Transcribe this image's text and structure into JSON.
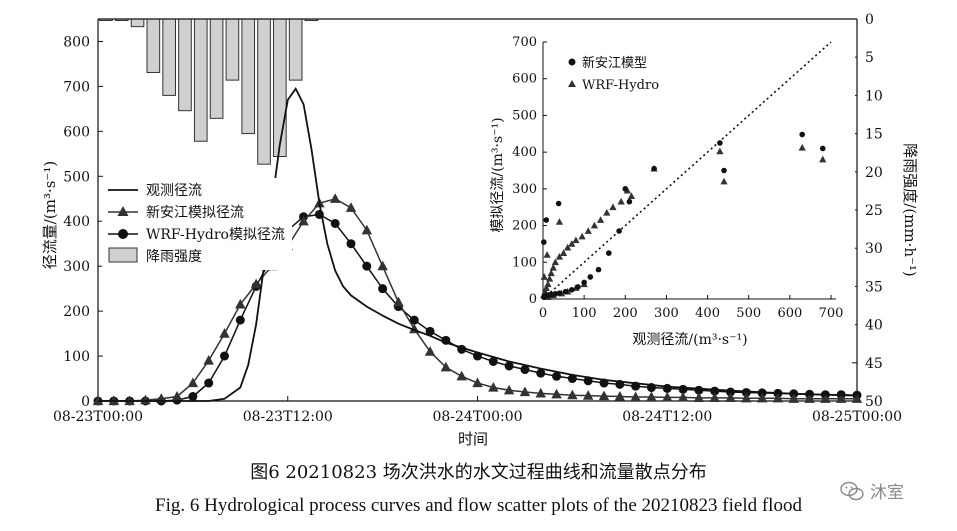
{
  "caption": {
    "cn": "图6   20210823 场次洪水的水文过程曲线和流量散点分布",
    "en": "Fig. 6   Hydrological process curves and flow scatter plots of the 20210823 field flood"
  },
  "watermark": {
    "text": "沐室",
    "icon": "wechat-icon"
  },
  "colors": {
    "ink": "#111111",
    "bar_fill": "#d0d0d0",
    "bar_stroke": "#333333"
  },
  "chart_data": [
    {
      "type": "line",
      "title": "",
      "xlabel": "时间",
      "ylabel": "径流量/(m³·s⁻¹)",
      "y2label": "降雨强度/(mm·h⁻¹)",
      "x_unit": "hours since 08-23T00:00",
      "xlim": [
        0,
        48
      ],
      "ylim": [
        0,
        850
      ],
      "y2lim": [
        50,
        0
      ],
      "xticks": [
        0,
        12,
        24,
        36,
        48
      ],
      "xtick_labels": [
        "08-23T00:00",
        "08-23T12:00",
        "08-24T00:00",
        "08-24T12:00",
        "08-25T00:00"
      ],
      "yticks": [
        0,
        100,
        200,
        300,
        400,
        500,
        600,
        700,
        800
      ],
      "y2ticks": [
        0,
        5,
        10,
        15,
        20,
        25,
        30,
        35,
        40,
        45,
        50
      ],
      "legend": {
        "position": "left-middle",
        "entries": [
          "观测径流",
          "新安江模拟径流",
          "WRF-Hydro模拟径流",
          "降雨强度"
        ]
      },
      "series": [
        {
          "name": "观测径流",
          "marker": "none",
          "x": [
            0,
            7,
            8,
            9,
            9.5,
            10,
            10.5,
            11,
            11.5,
            12,
            12.5,
            13,
            13.5,
            14,
            14.5,
            15,
            15.5,
            16,
            17,
            18,
            19,
            20,
            21,
            22,
            24,
            26,
            28,
            30,
            32,
            36,
            40,
            44,
            48
          ],
          "y": [
            0,
            0,
            5,
            30,
            80,
            170,
            300,
            440,
            570,
            670,
            695,
            660,
            560,
            440,
            350,
            290,
            255,
            235,
            210,
            190,
            172,
            158,
            145,
            130,
            108,
            88,
            72,
            58,
            47,
            32,
            23,
            16,
            12
          ]
        },
        {
          "name": "新安江模拟径流",
          "marker": "triangle",
          "x": [
            0,
            1,
            2,
            3,
            4,
            5,
            6,
            7,
            8,
            9,
            10,
            11,
            12,
            13,
            14,
            15,
            16,
            17,
            18,
            19,
            20,
            21,
            22,
            23,
            24,
            25,
            26,
            27,
            28,
            29,
            30,
            31,
            32,
            33,
            34,
            35,
            36,
            37,
            38,
            39,
            40,
            41,
            42,
            43,
            44,
            45,
            46,
            47,
            48
          ],
          "y": [
            0,
            0,
            0,
            2,
            5,
            10,
            40,
            90,
            150,
            215,
            260,
            300,
            345,
            400,
            440,
            450,
            430,
            380,
            300,
            220,
            160,
            110,
            75,
            55,
            40,
            30,
            24,
            20,
            17,
            15,
            13,
            12,
            11,
            10,
            9,
            9,
            8,
            8,
            7,
            7,
            7,
            6,
            6,
            6,
            5,
            5,
            5,
            5,
            5
          ]
        },
        {
          "name": "WRF-Hydro模拟径流",
          "marker": "circle",
          "x": [
            0,
            1,
            2,
            3,
            4,
            5,
            6,
            7,
            8,
            9,
            10,
            11,
            12,
            13,
            14,
            15,
            16,
            17,
            18,
            19,
            20,
            21,
            22,
            23,
            24,
            25,
            26,
            27,
            28,
            29,
            30,
            31,
            32,
            33,
            34,
            35,
            36,
            37,
            38,
            39,
            40,
            41,
            42,
            43,
            44,
            45,
            46,
            47,
            48
          ],
          "y": [
            0,
            0,
            0,
            0,
            0,
            2,
            10,
            40,
            100,
            180,
            255,
            320,
            380,
            410,
            415,
            395,
            350,
            300,
            250,
            210,
            180,
            155,
            135,
            115,
            100,
            88,
            78,
            70,
            62,
            55,
            50,
            45,
            40,
            37,
            33,
            30,
            28,
            26,
            24,
            22,
            20,
            19,
            18,
            17,
            16,
            15,
            14,
            14,
            13
          ]
        },
        {
          "name": "降雨强度",
          "type": "bar",
          "axis": "right",
          "x": [
            0.5,
            1.5,
            2.5,
            3.5,
            4.5,
            5.5,
            6.5,
            7.5,
            8.5,
            9.5,
            10.5,
            11.5,
            12.5,
            13.5
          ],
          "values": [
            0.2,
            0.2,
            1,
            7,
            10,
            12,
            16,
            13,
            8,
            15,
            19,
            18,
            8,
            0.2
          ]
        }
      ]
    },
    {
      "type": "scatter",
      "title": "",
      "xlabel": "观测径流/(m³·s⁻¹)",
      "ylabel": "模拟径流/(m³·s⁻¹)",
      "xlim": [
        0,
        700
      ],
      "ylim": [
        0,
        700
      ],
      "ticks": [
        0,
        100,
        200,
        300,
        400,
        500,
        600,
        700
      ],
      "reference_line": "y = x (dotted)",
      "legend": {
        "position": "top-left",
        "entries": [
          "新安江模型",
          "WRF-Hydro"
        ]
      },
      "series": [
        {
          "name": "新安江模型",
          "marker": "circle",
          "points": [
            [
              2,
              155
            ],
            [
              8,
              215
            ],
            [
              38,
              260
            ],
            [
              2,
              5
            ],
            [
              5,
              8
            ],
            [
              10,
              10
            ],
            [
              15,
              11
            ],
            [
              20,
              12
            ],
            [
              30,
              14
            ],
            [
              40,
              16
            ],
            [
              55,
              20
            ],
            [
              70,
              25
            ],
            [
              85,
              33
            ],
            [
              100,
              45
            ],
            [
              115,
              60
            ],
            [
              135,
              80
            ],
            [
              160,
              125
            ],
            [
              185,
              185
            ],
            [
              200,
              300
            ],
            [
              210,
              265
            ],
            [
              270,
              355
            ],
            [
              430,
              425
            ],
            [
              440,
              350
            ],
            [
              630,
              448
            ],
            [
              680,
              410
            ]
          ]
        },
        {
          "name": "WRF-Hydro",
          "marker": "triangle",
          "points": [
            [
              2,
              10
            ],
            [
              5,
              20
            ],
            [
              8,
              30
            ],
            [
              12,
              40
            ],
            [
              16,
              55
            ],
            [
              20,
              70
            ],
            [
              25,
              85
            ],
            [
              30,
              100
            ],
            [
              40,
              115
            ],
            [
              50,
              125
            ],
            [
              60,
              140
            ],
            [
              70,
              150
            ],
            [
              80,
              160
            ],
            [
              95,
              170
            ],
            [
              110,
              185
            ],
            [
              125,
              200
            ],
            [
              140,
              215
            ],
            [
              155,
              235
            ],
            [
              170,
              250
            ],
            [
              190,
              265
            ],
            [
              205,
              295
            ],
            [
              215,
              280
            ],
            [
              270,
              355
            ],
            [
              430,
              402
            ],
            [
              440,
              320
            ],
            [
              630,
              412
            ],
            [
              680,
              380
            ],
            [
              3,
              60
            ],
            [
              10,
              120
            ],
            [
              40,
              210
            ],
            [
              12,
              5
            ],
            [
              25,
              10
            ],
            [
              45,
              15
            ],
            [
              60,
              20
            ],
            [
              80,
              30
            ],
            [
              100,
              40
            ]
          ]
        }
      ]
    }
  ]
}
